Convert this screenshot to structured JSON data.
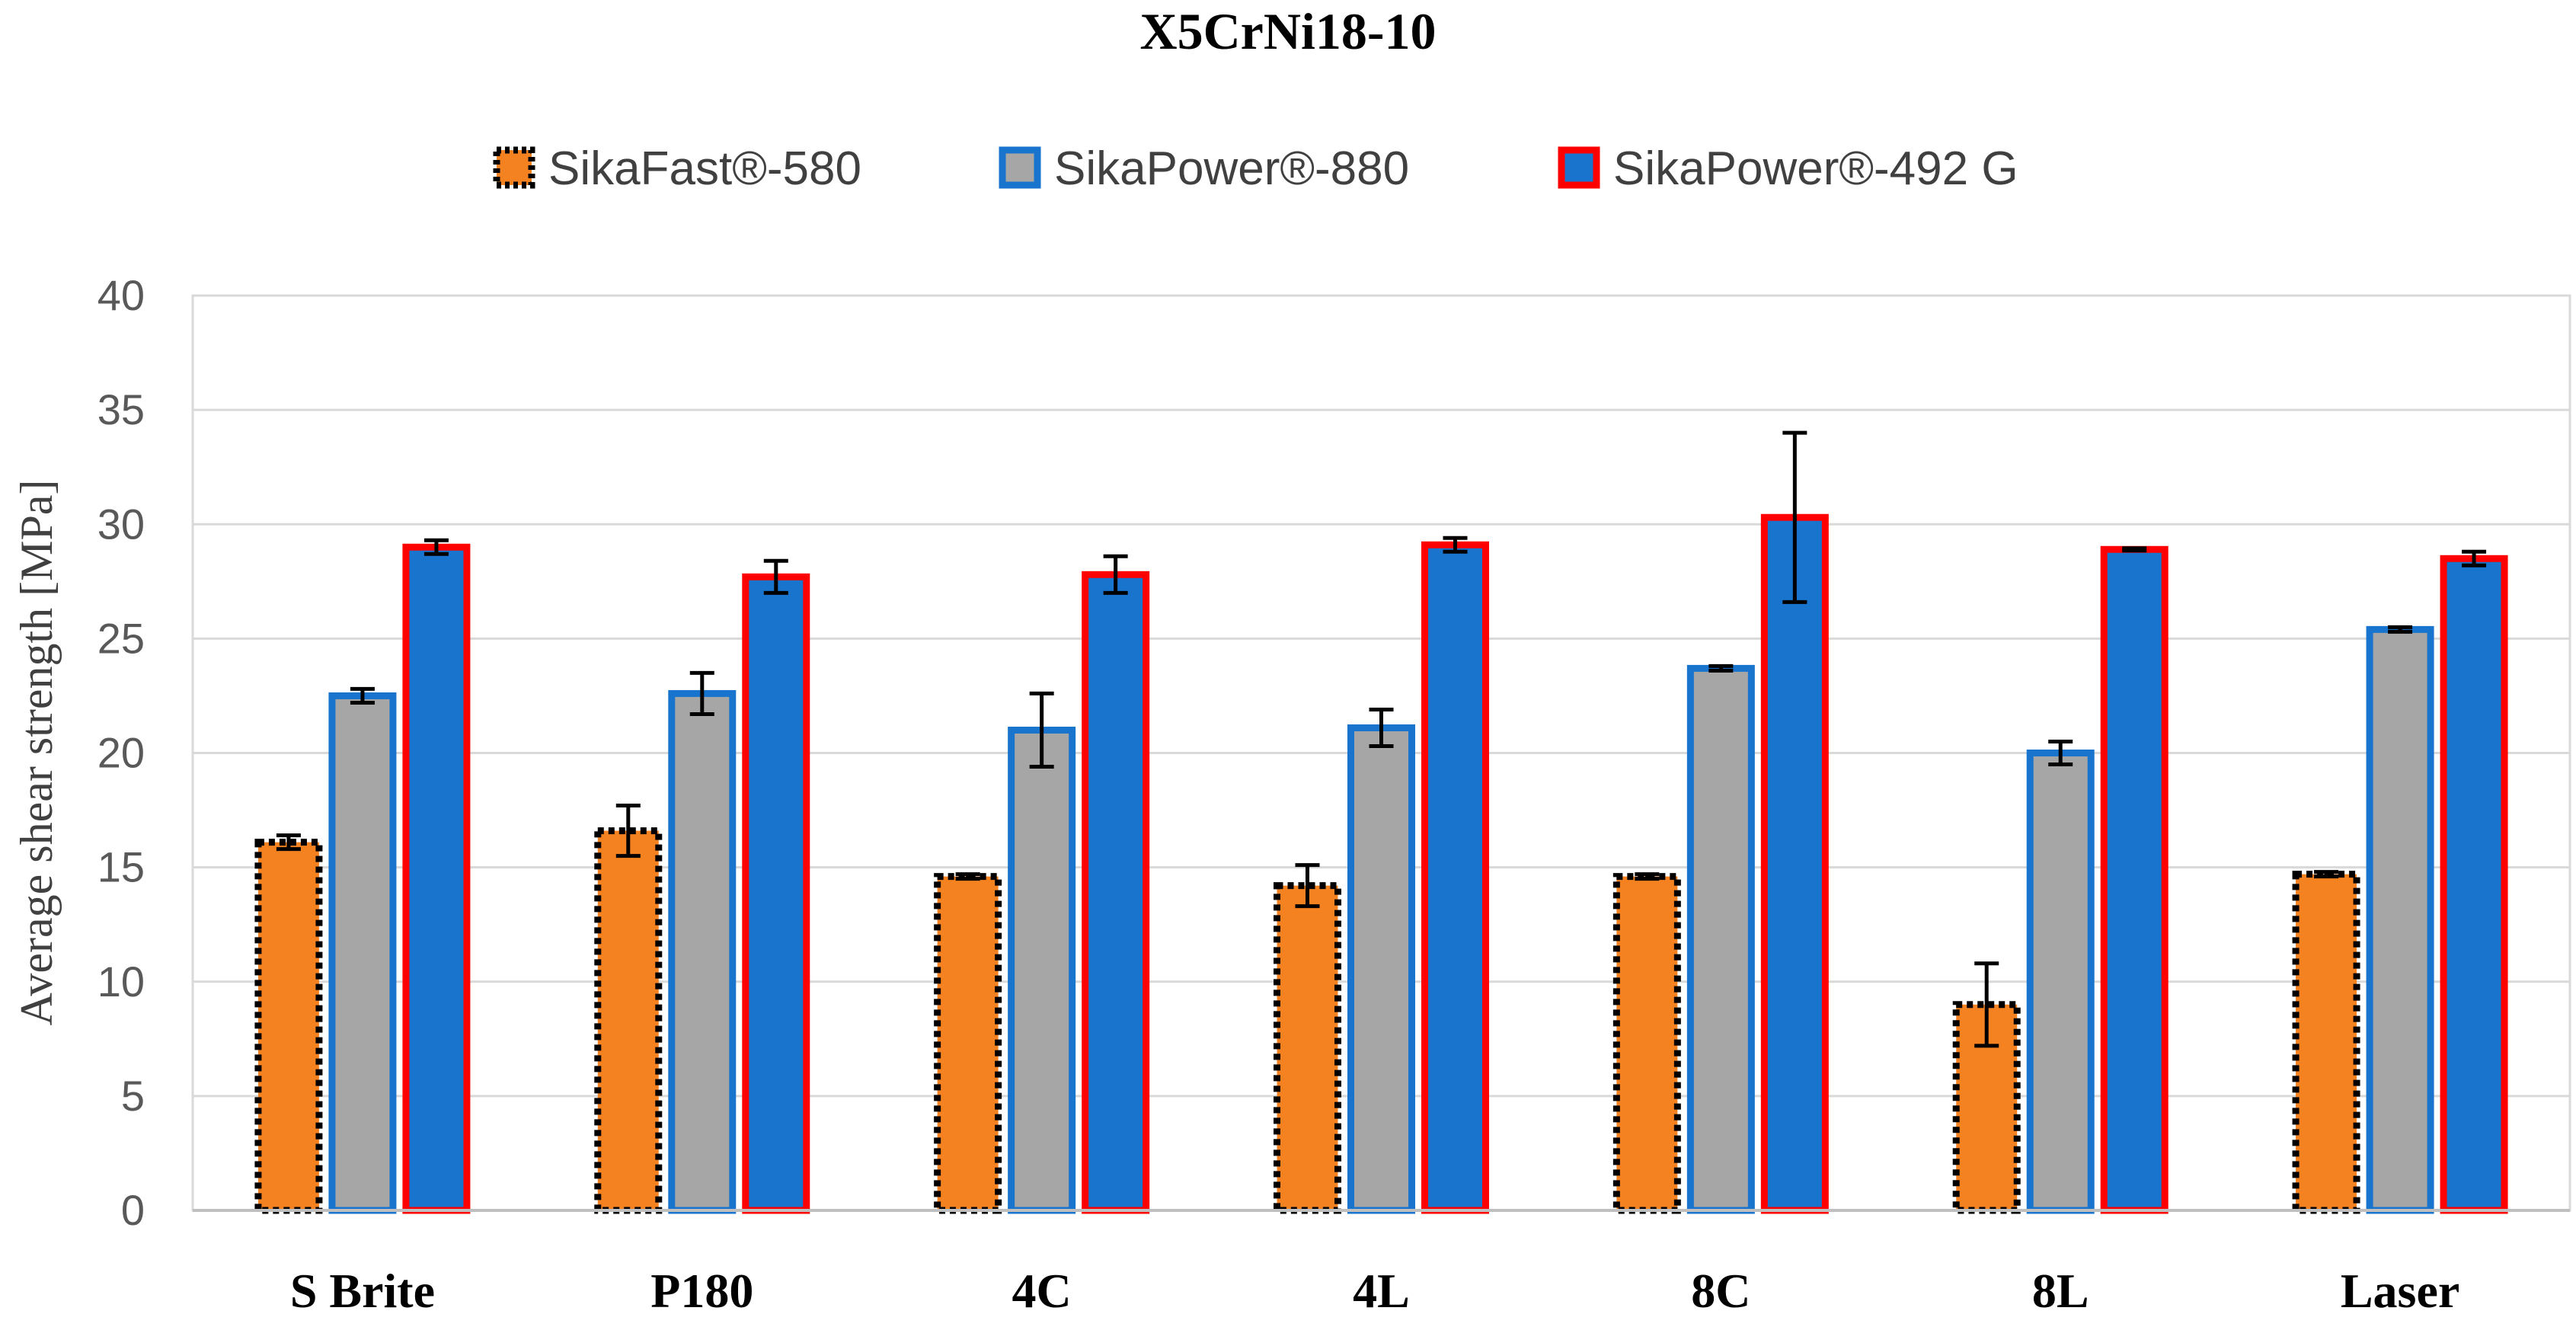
{
  "chart_data": {
    "type": "bar",
    "title": "X5CrNi18-10",
    "xlabel": "",
    "ylabel": "Average shear strength [MPa]",
    "ylim": [
      0,
      40
    ],
    "yticks": [
      "0",
      "5",
      "10",
      "15",
      "20",
      "25",
      "30",
      "35",
      "40"
    ],
    "grid": true,
    "legend_position": "top",
    "categories": [
      "S Brite",
      "P180",
      "4C",
      "4L",
      "8C",
      "8L",
      "Laser"
    ],
    "series": [
      {
        "name": "SikaFast®-580",
        "fill": "#F58220",
        "stroke": "#000000",
        "dashed": true,
        "values": [
          16.1,
          16.6,
          14.6,
          14.2,
          14.6,
          9.0,
          14.7
        ],
        "errors": [
          0.3,
          1.1,
          0.1,
          0.9,
          0.1,
          1.8,
          0.1
        ]
      },
      {
        "name": "SikaPower®-880",
        "fill": "#A6A6A6",
        "stroke": "#1874CD",
        "dashed": false,
        "values": [
          22.5,
          22.6,
          21.0,
          21.1,
          23.7,
          20.0,
          25.4
        ],
        "errors": [
          0.3,
          0.9,
          1.6,
          0.8,
          0.1,
          0.5,
          0.1
        ]
      },
      {
        "name": "SikaPower®-492 G",
        "fill": "#1874CD",
        "stroke": "#FF0000",
        "dashed": false,
        "values": [
          29.0,
          27.7,
          27.8,
          29.1,
          30.3,
          28.9,
          28.5
        ],
        "errors": [
          0.3,
          0.7,
          0.8,
          0.3,
          3.7,
          0.05,
          0.3
        ]
      }
    ]
  }
}
